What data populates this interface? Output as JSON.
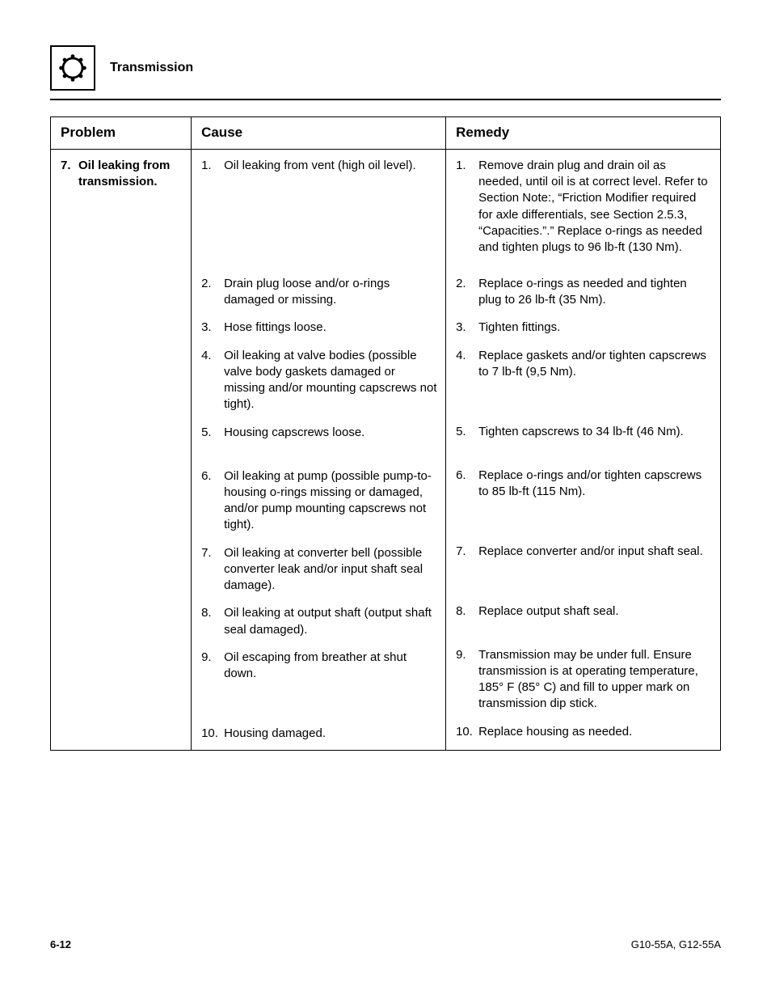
{
  "section_title": "Transmission",
  "table": {
    "headers": {
      "problem": "Problem",
      "cause": "Cause",
      "remedy": "Remedy"
    },
    "problem": {
      "number": "7.",
      "text": "Oil leaking from transmission."
    },
    "items": [
      {
        "n": "1.",
        "cause": "Oil leaking from vent (high oil level).",
        "remedy": "Remove drain plug and drain oil as needed, until oil is at correct level. Refer to Section Note:, “Friction Modifier required for axle differentials, see Section 2.5.3, “Capacities.”.” Replace o-rings as needed and tighten plugs to 96 lb-ft (130 Nm).",
        "min_h": 132
      },
      {
        "n": "2.",
        "cause": "Drain plug loose and/or o-rings damaged or missing.",
        "remedy": "Replace o-rings as needed and tighten plug to 26 lb-ft (35 Nm).",
        "min_h": 40
      },
      {
        "n": "3.",
        "cause": "Hose fittings loose.",
        "remedy": "Tighten fittings.",
        "min_h": 20
      },
      {
        "n": "4.",
        "cause": "Oil leaking at valve bodies (possible valve body gaskets damaged or missing and/or mounting capscrews not tight).",
        "remedy": "Replace gaskets and/or tighten capscrews to 7 lb-ft (9,5 Nm).",
        "min_h": 80
      },
      {
        "n": "5.",
        "cause": "Housing capscrews loose.",
        "remedy": "Tighten capscrews to 34 lb-ft (46 Nm).",
        "min_h": 40
      },
      {
        "n": "6.",
        "cause": "Oil leaking at pump (possible pump-to-housing o-rings missing or damaged, and/or pump mounting capscrews not tight).",
        "remedy": "Replace o-rings and/or tighten capscrews to 85 lb-ft (115 Nm).",
        "min_h": 80
      },
      {
        "n": "7.",
        "cause": "Oil leaking at converter bell (possible converter leak and/or input shaft seal damage).",
        "remedy": "Replace converter and/or input shaft seal.",
        "min_h": 60
      },
      {
        "n": "8.",
        "cause": "Oil leaking at output shaft (output shaft seal damaged).",
        "remedy": "Replace output shaft seal.",
        "min_h": 40
      },
      {
        "n": "9.",
        "cause": "Oil escaping from breather at shut down.",
        "remedy": "Transmission may be under full. Ensure transmission is at operating temperature, 185° F (85° C) and fill to upper mark on transmission dip stick.",
        "min_h": 80
      },
      {
        "n": "10.",
        "cause": "Housing damaged.",
        "remedy": "Replace housing as needed.",
        "min_h": 20
      }
    ]
  },
  "footer": {
    "page": "6-12",
    "doc": "G10-55A, G12-55A"
  }
}
